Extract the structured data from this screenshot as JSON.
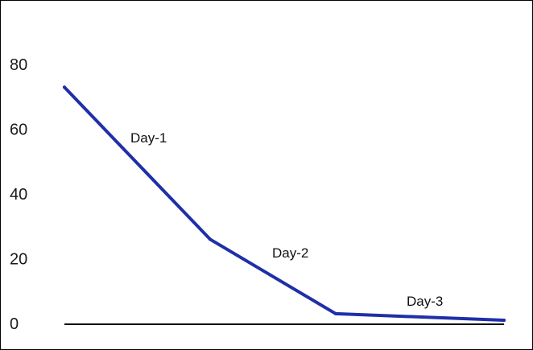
{
  "chart_data": {
    "type": "line",
    "title": "",
    "xlabel": "",
    "ylabel": "",
    "x": [
      0,
      1,
      2,
      3
    ],
    "ylim": [
      0,
      90
    ],
    "yticks": [
      0,
      20,
      40,
      60,
      80
    ],
    "yticks_labels": [
      "0",
      "20",
      "40",
      "60",
      "80"
    ],
    "grid": false,
    "legend": "none",
    "series": [
      {
        "values": [
          73,
          26,
          3,
          1
        ],
        "color": "#1f2fa8"
      }
    ],
    "annotations": [
      {
        "text": "Day-1",
        "x": 0.5,
        "y": 57
      },
      {
        "text": "Day-2",
        "x": 1.45,
        "y": 20
      },
      {
        "text": "Day-3",
        "x": 2.5,
        "y": 6
      }
    ],
    "baseline_color": "#000000"
  }
}
